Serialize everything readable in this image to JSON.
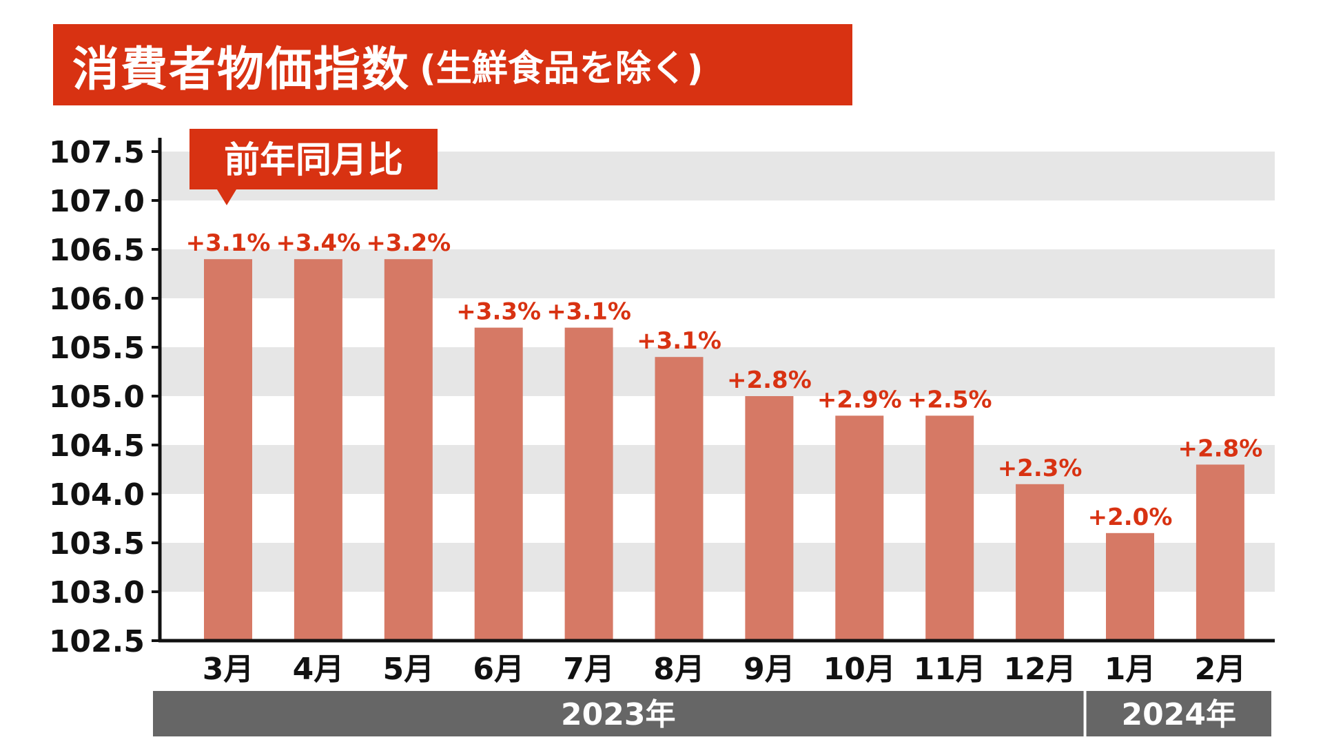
{
  "title": {
    "main": "消費者物価指数",
    "sub": "(生鮮食品を除く)"
  },
  "callout": "前年同月比",
  "colors": {
    "accent": "#d83212",
    "bar": "#d67965",
    "band": "#e6e6e6",
    "year_bar": "#666666",
    "axis": "#111111"
  },
  "chart_data": {
    "type": "bar",
    "title": "消費者物価指数 (生鮮食品を除く)",
    "categories": [
      "3月",
      "4月",
      "5月",
      "6月",
      "7月",
      "8月",
      "9月",
      "10月",
      "11月",
      "12月",
      "1月",
      "2月"
    ],
    "values": [
      106.4,
      106.4,
      106.4,
      105.7,
      105.7,
      105.4,
      105.0,
      104.8,
      104.8,
      104.1,
      103.6,
      104.3
    ],
    "data_labels": [
      "+3.1%",
      "+3.4%",
      "+3.2%",
      "+3.3%",
      "+3.1%",
      "+3.1%",
      "+2.8%",
      "+2.9%",
      "+2.5%",
      "+2.3%",
      "+2.0%",
      "+2.8%"
    ],
    "ylim": [
      102.5,
      107.5
    ],
    "yticks": [
      "107.5",
      "107.0",
      "106.5",
      "106.0",
      "105.5",
      "105.0",
      "104.5",
      "104.0",
      "103.5",
      "103.0",
      "102.5"
    ],
    "year_groups": [
      {
        "label": "2023年",
        "start": 0,
        "end": 9
      },
      {
        "label": "2024年",
        "start": 10,
        "end": 11
      }
    ],
    "grid": "alternating horizontal bands",
    "legend": "none"
  }
}
